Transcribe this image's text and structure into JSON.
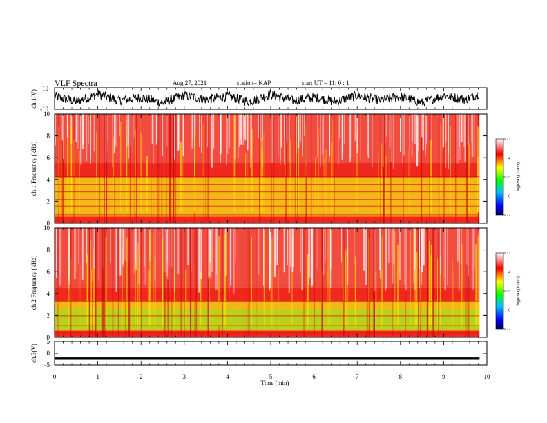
{
  "header": {
    "title": "VLF Spectra",
    "date": "Aug.27, 2021",
    "station": "station= KAP",
    "start": "start  UT =   11: 0  : 1"
  },
  "chart_data": [
    {
      "type": "line",
      "title": "VLF Spectra",
      "ylabel": "ch.1(V)",
      "xlabel": "",
      "ylim": [
        -10,
        10
      ],
      "yticks": [
        10,
        -10
      ],
      "xlim": [
        0,
        10
      ],
      "description_series": [
        {
          "x": [
            0,
            0.5,
            1,
            1.5,
            2,
            2.5,
            3,
            3.5,
            4,
            4.5,
            5,
            5.5,
            6,
            6.5,
            7,
            7.5,
            8,
            8.5,
            9,
            9.5,
            9.83
          ],
          "y": [
            2,
            -3,
            4,
            -2,
            1,
            -4,
            3,
            -1,
            2,
            -3,
            4,
            -2,
            1,
            -3,
            3,
            -2,
            2,
            -4,
            3,
            -1,
            5
          ]
        }
      ]
    },
    {
      "type": "heatmap",
      "ylabel": "ch.1 Frequency (kHz)",
      "ylim": [
        0,
        10
      ],
      "yticks": [
        0,
        2,
        4,
        6,
        8,
        10
      ],
      "xlim": [
        0,
        10
      ],
      "colorbar": {
        "label": "log(PSD)(V²/Hz)",
        "range": [
          -7,
          -3
        ],
        "ticks": [
          -3,
          -4,
          -5,
          -6,
          -7
        ],
        "colors": [
          "#000080",
          "#0000ff",
          "#00ffff",
          "#00ff00",
          "#ffff00",
          "#ff0000",
          "#ffffff"
        ]
      },
      "data_extent_min": 9.83
    },
    {
      "type": "heatmap",
      "ylabel": "ch.2 Frequency (kHz)",
      "ylim": [
        0,
        10
      ],
      "yticks": [
        0,
        2,
        4,
        6,
        8,
        10
      ],
      "xlim": [
        0,
        10
      ],
      "colorbar": {
        "label": "log(PSD)(V²/Hz)",
        "range": [
          -7,
          -3
        ],
        "ticks": [
          -3,
          -4,
          -5,
          -6,
          -7
        ],
        "colors": [
          "#000080",
          "#0000ff",
          "#00ffff",
          "#00ff00",
          "#ffff00",
          "#ff0000",
          "#ffffff"
        ]
      },
      "data_extent_min": 9.83
    },
    {
      "type": "line",
      "ylabel": "ch.3(V)",
      "xlabel": "Time  (min)",
      "ylim": [
        -5,
        5
      ],
      "yticks": [
        5,
        0,
        -5
      ],
      "xlim": [
        0,
        10
      ],
      "xticks": [
        0,
        1,
        2,
        3,
        4,
        5,
        6,
        7,
        8,
        9,
        10
      ],
      "series": [
        {
          "x": [
            0,
            9.83
          ],
          "y": [
            -2.3,
            -2.3
          ],
          "band": 0.5
        }
      ]
    }
  ]
}
